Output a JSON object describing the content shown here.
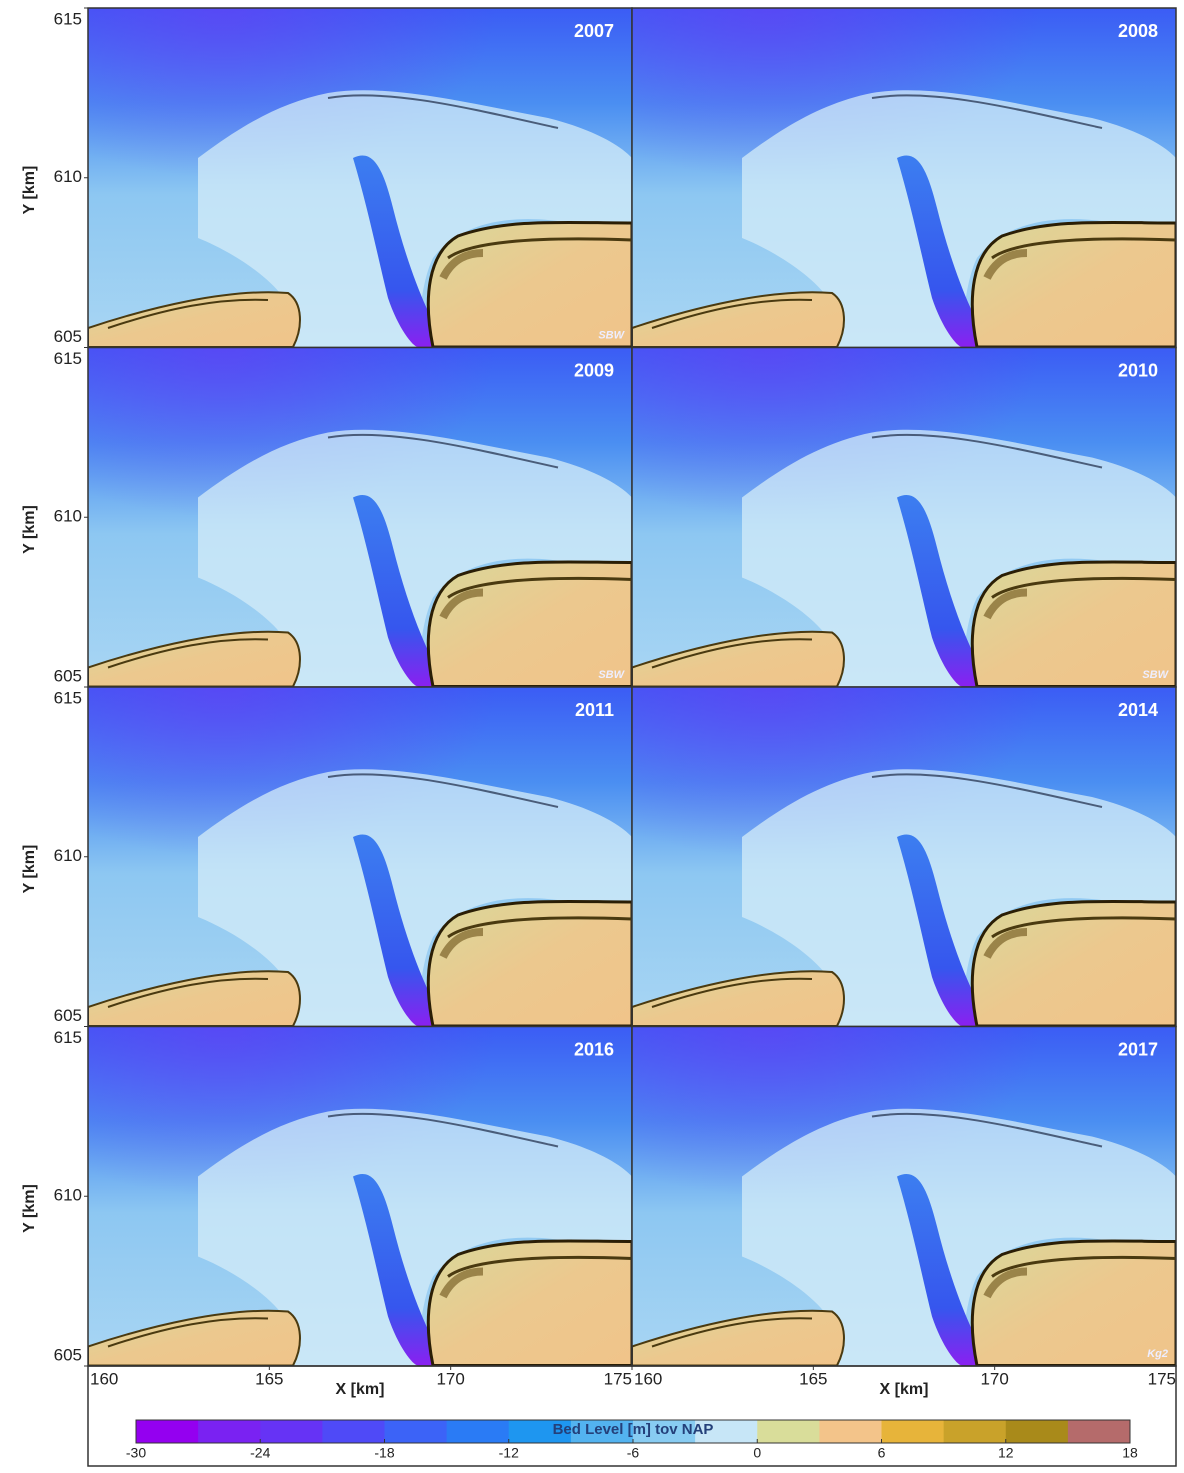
{
  "panels": [
    {
      "label": "2007",
      "annotation": "SBW"
    },
    {
      "label": "2008"
    },
    {
      "label": "2009",
      "annotation": "SBW"
    },
    {
      "label": "2010",
      "annotation": "SBW"
    },
    {
      "label": "2011"
    },
    {
      "label": "2014"
    },
    {
      "label": "2016"
    },
    {
      "label": "2017",
      "annotation": "Kg2"
    }
  ],
  "axes": {
    "x_label": "X [km]",
    "y_label": "Y [km]",
    "xlim": [
      160,
      175
    ],
    "ylim": [
      605,
      615
    ],
    "xticks": [
      160,
      165,
      170,
      175
    ],
    "yticks": [
      605,
      610,
      615
    ]
  },
  "colorbar": {
    "label": "Bed Level  [m] tov NAP",
    "lim": [
      -30,
      18
    ],
    "ticks": [
      -30,
      -24,
      -18,
      -12,
      -6,
      0,
      6,
      12,
      18
    ],
    "colors": [
      "#9400f0",
      "#7a22f2",
      "#6633f5",
      "#4f4af7",
      "#3c63f7",
      "#2a7bf5",
      "#1e96f0",
      "#53b3f0",
      "#88ccf2",
      "#c7e6f7",
      "#d9dd9a",
      "#f3c48a",
      "#e7b43a",
      "#c9a22a",
      "#a98a1a",
      "#b56b6b"
    ]
  }
}
